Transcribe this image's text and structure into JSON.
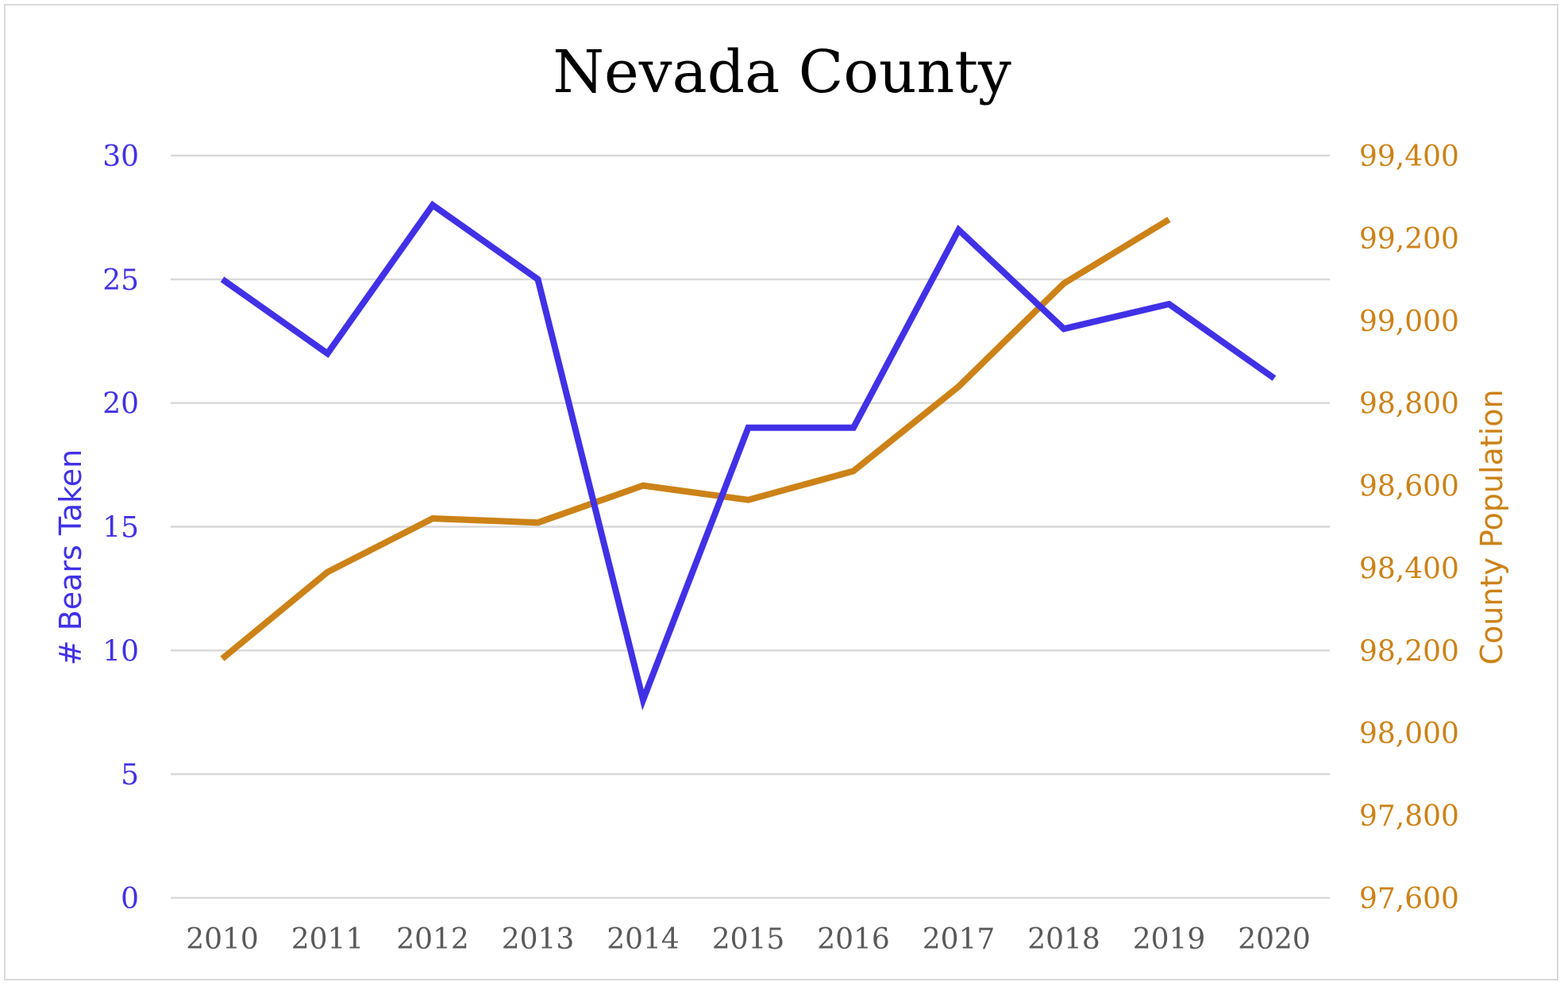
{
  "chart_data": {
    "type": "line",
    "title": "Nevada County",
    "x": [
      "2010",
      "2011",
      "2012",
      "2013",
      "2014",
      "2015",
      "2016",
      "2017",
      "2018",
      "2019",
      "2020"
    ],
    "y_left": {
      "label": "# Bears Taken",
      "ylim": [
        0,
        30
      ],
      "ticks": [
        "0",
        "5",
        "10",
        "15",
        "20",
        "25",
        "30"
      ],
      "color": "#4131e6"
    },
    "y_right": {
      "label": "County Population",
      "ylim": [
        97600,
        99400
      ],
      "ticks": [
        "97,600",
        "97,800",
        "98,000",
        "98,200",
        "98,400",
        "98,600",
        "98,800",
        "99,000",
        "99,200",
        "99,400"
      ],
      "color": "#cc8217"
    },
    "grid": true,
    "series": [
      {
        "axis": "left",
        "color": "#4131e6",
        "values": [
          25,
          22,
          28,
          25,
          8,
          19,
          19,
          27,
          23,
          24,
          21
        ]
      },
      {
        "axis": "right",
        "color": "#cc8217",
        "values": [
          98180,
          98390,
          98520,
          98510,
          98600,
          98565,
          98635,
          98840,
          99090,
          99245,
          null
        ]
      }
    ]
  }
}
